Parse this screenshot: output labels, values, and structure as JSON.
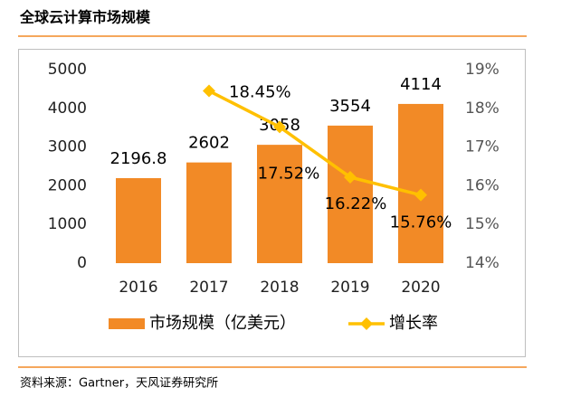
{
  "title": "全球云计算市场规模",
  "source": "资料来源：Gartner，天风证券研究所",
  "chart_data": {
    "type": "bar_line",
    "categories": [
      "2016",
      "2017",
      "2018",
      "2019",
      "2020"
    ],
    "series": [
      {
        "name": "市场规模（亿美元）",
        "type": "bar",
        "color": "#f28a26",
        "values": [
          2196.8,
          2602,
          3058,
          3554,
          4114
        ]
      },
      {
        "name": "增长率",
        "type": "line",
        "axis": "y2",
        "color": "#ffc000",
        "values": [
          null,
          18.45,
          17.52,
          16.22,
          15.76
        ],
        "value_labels": [
          null,
          "18.45%",
          "17.52%",
          "16.22%",
          "15.76%"
        ]
      }
    ],
    "ylim": [
      0,
      5000
    ],
    "yticks": [
      0,
      1000,
      2000,
      3000,
      4000,
      5000
    ],
    "y2lim": [
      14,
      19
    ],
    "y2ticks": [
      {
        "value": 14,
        "label": "14%"
      },
      {
        "value": 15,
        "label": "15%"
      },
      {
        "value": 16,
        "label": "16%"
      },
      {
        "value": 17,
        "label": "17%"
      },
      {
        "value": 18,
        "label": "18%"
      },
      {
        "value": 19,
        "label": "19%"
      }
    ],
    "legend": "bottom"
  }
}
